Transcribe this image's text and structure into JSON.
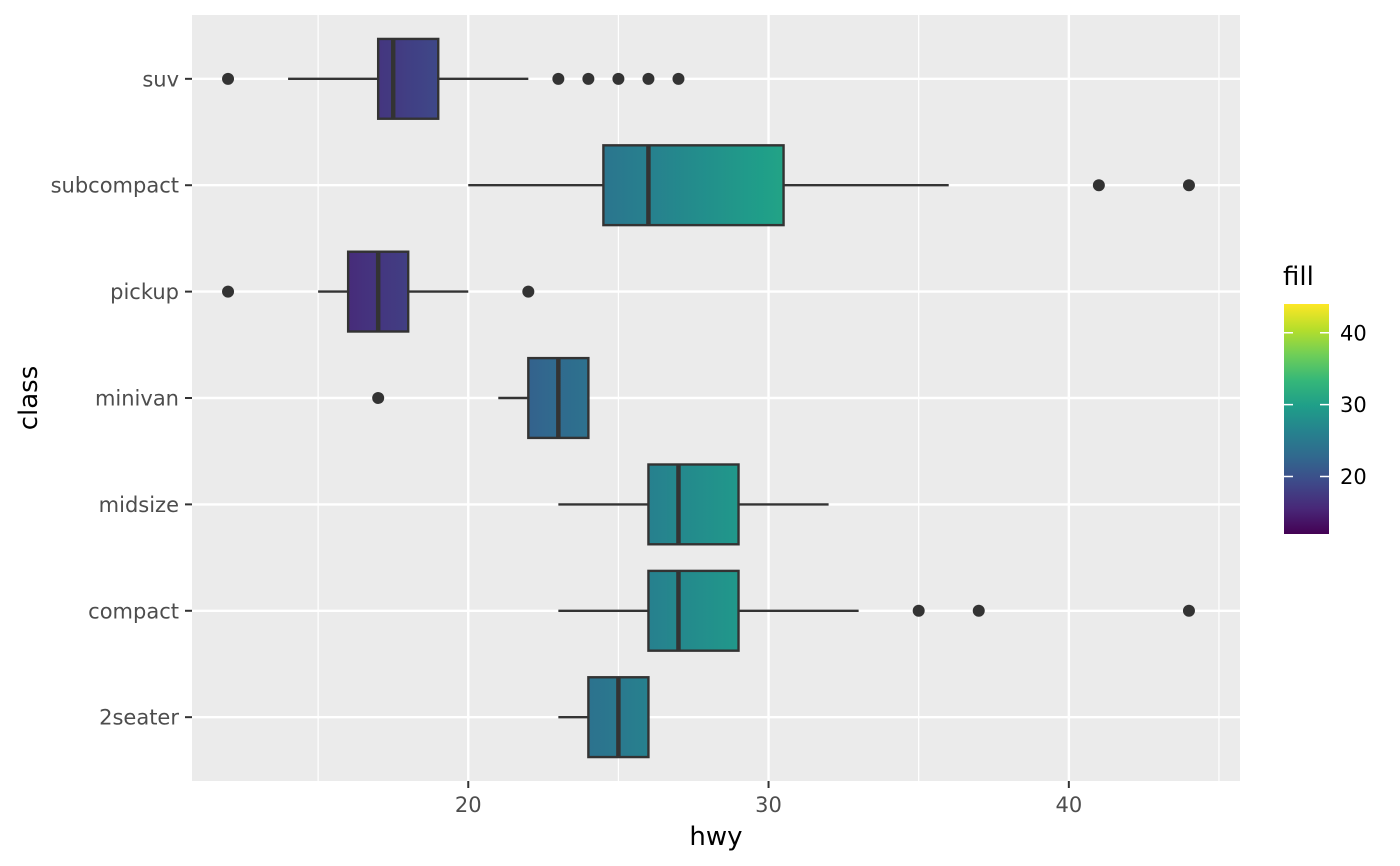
{
  "chart_data": {
    "type": "boxplot",
    "orientation": "horizontal",
    "xlabel": "hwy",
    "ylabel": "class",
    "xlim": [
      10.8,
      45.7
    ],
    "x_ticks": [
      20,
      30,
      40
    ],
    "x_minor_ticks": [
      15,
      25,
      35,
      45
    ],
    "grid": true,
    "categories": [
      "2seater",
      "compact",
      "midsize",
      "minivan",
      "pickup",
      "subcompact",
      "suv"
    ],
    "boxes": [
      {
        "category": "2seater",
        "whisker_low": 23,
        "q1": 24,
        "median": 25,
        "q3": 26,
        "whisker_high": 26,
        "outliers": []
      },
      {
        "category": "compact",
        "whisker_low": 23,
        "q1": 26,
        "median": 27,
        "q3": 29,
        "whisker_high": 33,
        "outliers": [
          35,
          37,
          44
        ]
      },
      {
        "category": "midsize",
        "whisker_low": 23,
        "q1": 26,
        "median": 27,
        "q3": 29,
        "whisker_high": 32,
        "outliers": []
      },
      {
        "category": "minivan",
        "whisker_low": 21,
        "q1": 22,
        "median": 23,
        "q3": 24,
        "whisker_high": 24,
        "outliers": [
          17
        ]
      },
      {
        "category": "pickup",
        "whisker_low": 15,
        "q1": 16,
        "median": 17,
        "q3": 18,
        "whisker_high": 20,
        "outliers": [
          12,
          22
        ]
      },
      {
        "category": "subcompact",
        "whisker_low": 20,
        "q1": 24.5,
        "median": 26,
        "q3": 30.5,
        "whisker_high": 36,
        "outliers": [
          41,
          44
        ]
      },
      {
        "category": "suv",
        "whisker_low": 14,
        "q1": 17,
        "median": 17.5,
        "q3": 19,
        "whisker_high": 22,
        "outliers": [
          12,
          23,
          24,
          25,
          26,
          27
        ]
      }
    ],
    "legend": {
      "title": "fill",
      "placement": "right",
      "type": "gradient",
      "limits": [
        12,
        44
      ],
      "breaks": [
        20,
        30,
        40
      ],
      "colormap": "viridis"
    },
    "colors": {
      "panel_background": "#ebebeb",
      "grid": "#ffffff",
      "box_outline": "#333333",
      "outlier": "#333333",
      "viridis_stops": [
        "#440154",
        "#482878",
        "#3e4989",
        "#31688e",
        "#26828e",
        "#1f9e89",
        "#35b779",
        "#6ece58",
        "#b5de2b",
        "#fde725"
      ]
    }
  }
}
